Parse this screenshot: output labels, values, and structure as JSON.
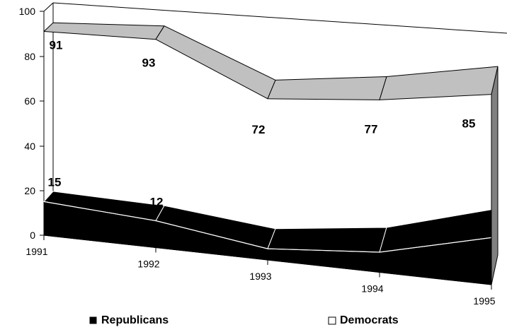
{
  "chart_data": {
    "type": "area",
    "categories": [
      "1991",
      "1992",
      "1993",
      "1994",
      "1995"
    ],
    "series": [
      {
        "name": "Republicans",
        "values": [
          15,
          12,
          5,
          9,
          21
        ],
        "color": "#000000"
      },
      {
        "name": "Democrats",
        "values": [
          91,
          93,
          72,
          77,
          85
        ],
        "color": "#c0c0c0"
      }
    ],
    "y_ticks": [
      "0",
      "20",
      "40",
      "60",
      "80",
      "100"
    ],
    "ylim": [
      0,
      100
    ],
    "grid": false,
    "legend_position": "bottom",
    "three_d": true
  }
}
